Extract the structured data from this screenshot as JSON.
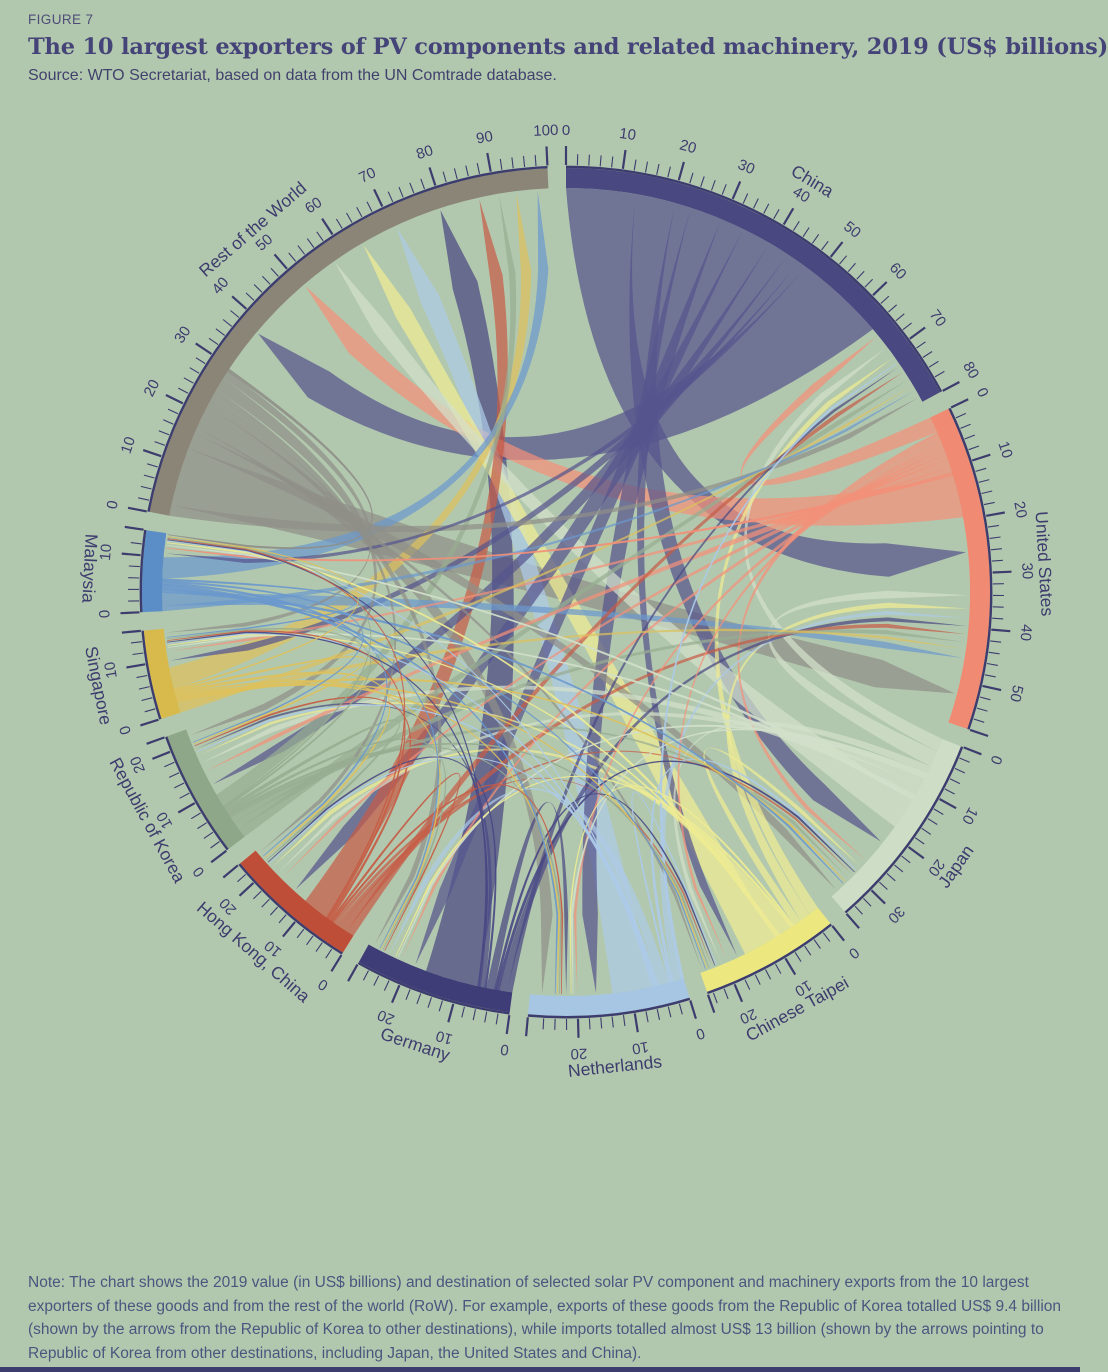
{
  "header": {
    "figure_label": "FIGURE 7",
    "title": "The 10 largest exporters of PV components and related machinery, 2019 (US$ billions)",
    "source": "Source: WTO Secretariat, based on data from the UN Comtrade database."
  },
  "note": {
    "lines": [
      "Note: The chart shows the 2019 value (in US$ billions) and destination of selected solar PV component and machinery exports from the 10 largest",
      "exporters of these goods and from the rest of the world (RoW). For example, exports of these goods from the Republic of Korea totalled US$ 9.4 billion",
      "(shown by the arrows from the Republic of Korea to other destinations), while imports totalled almost US$ 13 billion (shown by the arrows pointing to",
      "Republic of Korea from other destinations, including Japan, the United States and China)."
    ]
  },
  "colors": {
    "background": "#b2c8ae",
    "axis": "#3d3c6e",
    "title_text": "#454478",
    "note_text": "#4a567f",
    "bottom_bar": "#3d3c6e"
  },
  "chart_data": {
    "type": "chord",
    "title": "The 10 largest exporters of PV components and related machinery, 2019 (US$ billions)",
    "units": "US$ billions",
    "tick_minor_step": 2,
    "tick_label_step": 10,
    "sector_gap_degrees": 2.5,
    "sector_order_clockwise_from_top": [
      "China",
      "United States",
      "Japan",
      "Chinese Taipei",
      "Netherlands",
      "Germany",
      "Hong Kong, China",
      "Republic of Korea",
      "Singapore",
      "Malaysia",
      "Rest of the World"
    ],
    "countries": [
      {
        "name": "China",
        "band_color": "#4a4880",
        "ribbon_color": "#56548e",
        "axis_ticks_to": 80,
        "exports_est": 64.5,
        "imports_est": 16.3
      },
      {
        "name": "United States",
        "band_color": "#f08a72",
        "ribbon_color": "#f29079",
        "axis_ticks_to": 50,
        "exports_est": 19.5,
        "imports_est": 38.5
      },
      {
        "name": "Japan",
        "band_color": "#cdddc6",
        "ribbon_color": "#d2e0cb",
        "axis_ticks_to": 30,
        "exports_est": 18.5,
        "imports_est": 17.5
      },
      {
        "name": "Chinese Taipei",
        "band_color": "#ece87f",
        "ribbon_color": "#eeeb93",
        "axis_ticks_to": 20,
        "exports_est": 16.0,
        "imports_est": 9.0
      },
      {
        "name": "Netherlands",
        "band_color": "#a6c6e4",
        "ribbon_color": "#adcbe8",
        "axis_ticks_to": 20,
        "exports_est": 13.2,
        "imports_est": 15.3
      },
      {
        "name": "Germany",
        "band_color": "#3f3d78",
        "ribbon_color": "#4a4884",
        "axis_ticks_to": 20,
        "exports_est": 16.5,
        "imports_est": 11.7
      },
      {
        "name": "Hong Kong, China",
        "band_color": "#bf4e38",
        "ribbon_color": "#c65c46",
        "axis_ticks_to": 20,
        "exports_est": 11.0,
        "imports_est": 13.1
      },
      {
        "name": "Republic of Korea",
        "band_color": "#8ea788",
        "ribbon_color": "#97ad91",
        "axis_ticks_to": 20,
        "exports_est": 9.4,
        "imports_est": 13.3
      },
      {
        "name": "Singapore",
        "band_color": "#d8b94c",
        "ribbon_color": "#ddc05d",
        "axis_ticks_to": 10,
        "exports_est": 8.6,
        "imports_est": 7.3
      },
      {
        "name": "Malaysia",
        "band_color": "#5b8ec6",
        "ribbon_color": "#6b99cd",
        "axis_ticks_to": 10,
        "exports_est": 10.0,
        "imports_est": 4.5
      },
      {
        "name": "Rest of the World",
        "band_color": "#8b8577",
        "ribbon_color": "#8f8f88",
        "axis_ticks_to": 100,
        "exports_est": 30.0,
        "imports_est": 70.5
      }
    ],
    "matrix_exporter_rows_to_importer_cols": [
      [
        0,
        13,
        7.5,
        3,
        6,
        4.5,
        5.5,
        4,
        2.5,
        1.5,
        17
      ],
      [
        3,
        0,
        1.5,
        1,
        1,
        1,
        1,
        1.5,
        1,
        0.5,
        8
      ],
      [
        2.5,
        3,
        0,
        1.5,
        0.5,
        0.5,
        1.5,
        2,
        0.5,
        0.5,
        6
      ],
      [
        2,
        2,
        1.5,
        0,
        0.3,
        0.4,
        1.5,
        1,
        0.3,
        0.5,
        6.5
      ],
      [
        0.5,
        1.5,
        0.5,
        0.3,
        0,
        2,
        0.3,
        0.4,
        0.3,
        0.2,
        7.5
      ],
      [
        1,
        1.5,
        0.5,
        0.4,
        1.5,
        0,
        0.3,
        0.8,
        0.3,
        0.2,
        10
      ],
      [
        1.5,
        1.5,
        0.8,
        0.7,
        0.3,
        0.3,
        0,
        0.4,
        0.3,
        0.2,
        5
      ],
      [
        1.8,
        1.5,
        1.2,
        0.5,
        0.4,
        0.4,
        0.6,
        0,
        0.3,
        0.2,
        2.5
      ],
      [
        1,
        1,
        0.5,
        0.3,
        0.4,
        0.3,
        0.5,
        0.4,
        0,
        0.2,
        4
      ],
      [
        1,
        2.5,
        0.5,
        0.3,
        0.4,
        0.3,
        0.4,
        0.3,
        0.3,
        0,
        4
      ],
      [
        2,
        11,
        3,
        1,
        4.5,
        2,
        1.5,
        2.5,
        1.5,
        0.5,
        0
      ]
    ]
  }
}
